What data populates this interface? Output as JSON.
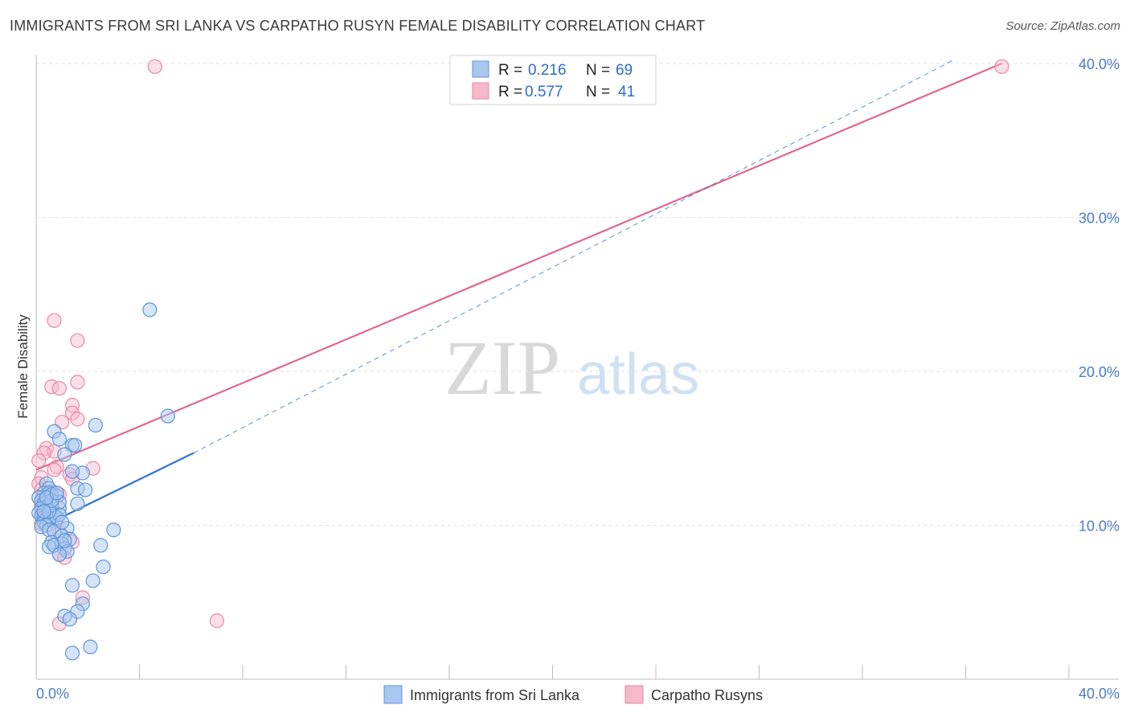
{
  "header": {
    "title": "IMMIGRANTS FROM SRI LANKA VS CARPATHO RUSYN FEMALE DISABILITY CORRELATION CHART",
    "source": "Source: ZipAtlas.com"
  },
  "watermark": {
    "zip": "ZIP",
    "atlas": "atlas"
  },
  "legend_box": {
    "rows": [
      {
        "r_label": "R =",
        "r_value": "0.216",
        "n_label": "N =",
        "n_value": "69"
      },
      {
        "r_label": "R =",
        "r_value": "0.577",
        "n_label": "N =",
        "n_value": "41"
      }
    ]
  },
  "colors": {
    "blue_fill": "#a9c8ef",
    "blue_stroke": "#5e95d8",
    "blue_line": "#2f74d0",
    "pink_fill": "#f6b8cb",
    "pink_stroke": "#e888a6",
    "pink_line": "#e0678f",
    "tick_text": "#4a7cc7",
    "grid": "#e2e2e2"
  },
  "chart_data": {
    "type": "scatter",
    "title": "IMMIGRANTS FROM SRI LANKA VS CARPATHO RUSYN FEMALE DISABILITY CORRELATION CHART",
    "xlabel": "",
    "ylabel": "Female Disability",
    "xlim": [
      0,
      40
    ],
    "ylim": [
      0,
      40
    ],
    "x_tick_labels": [
      "0.0%",
      "40.0%"
    ],
    "y_ticks": [
      10,
      20,
      30,
      40
    ],
    "y_tick_labels": [
      "10.0%",
      "20.0%",
      "30.0%",
      "40.0%"
    ],
    "legend": [
      "Immigrants from Sri Lanka",
      "Carpatho Rusyns"
    ],
    "series": [
      {
        "name": "Immigrants from Sri Lanka",
        "R": 0.216,
        "N": 69,
        "trend_solid": [
          [
            0.1,
            9.8
          ],
          [
            6.1,
            14.7
          ]
        ],
        "trend_dashed": [
          [
            6.1,
            14.7
          ],
          [
            35.5,
            40.2
          ]
        ],
        "points": [
          [
            4.4,
            24.0
          ],
          [
            5.1,
            17.1
          ],
          [
            2.3,
            16.5
          ],
          [
            0.7,
            16.1
          ],
          [
            1.4,
            15.2
          ],
          [
            1.5,
            15.2
          ],
          [
            0.9,
            15.6
          ],
          [
            1.1,
            14.6
          ],
          [
            1.8,
            13.4
          ],
          [
            1.4,
            13.5
          ],
          [
            0.4,
            12.7
          ],
          [
            0.5,
            12.4
          ],
          [
            1.6,
            12.4
          ],
          [
            1.9,
            12.3
          ],
          [
            0.3,
            12.1
          ],
          [
            0.5,
            12.1
          ],
          [
            0.6,
            12.0
          ],
          [
            0.8,
            11.9
          ],
          [
            0.1,
            11.8
          ],
          [
            0.2,
            11.6
          ],
          [
            0.3,
            11.4
          ],
          [
            0.4,
            11.2
          ],
          [
            0.2,
            11.1
          ],
          [
            0.6,
            11.0
          ],
          [
            0.9,
            11.1
          ],
          [
            0.1,
            10.8
          ],
          [
            0.2,
            10.6
          ],
          [
            0.3,
            10.5
          ],
          [
            0.4,
            10.4
          ],
          [
            0.5,
            10.3
          ],
          [
            0.7,
            10.6
          ],
          [
            0.8,
            10.5
          ],
          [
            0.3,
            10.2
          ],
          [
            0.4,
            10.0
          ],
          [
            1.6,
            11.4
          ],
          [
            0.9,
            10.7
          ],
          [
            0.2,
            9.9
          ],
          [
            0.5,
            9.7
          ],
          [
            3.0,
            9.7
          ],
          [
            0.7,
            9.6
          ],
          [
            1.2,
            9.8
          ],
          [
            1.0,
            9.3
          ],
          [
            1.3,
            9.1
          ],
          [
            0.6,
            8.9
          ],
          [
            1.0,
            8.8
          ],
          [
            0.5,
            8.6
          ],
          [
            0.7,
            8.7
          ],
          [
            1.1,
            8.5
          ],
          [
            1.2,
            8.3
          ],
          [
            0.9,
            8.1
          ],
          [
            2.5,
            8.7
          ],
          [
            2.6,
            7.3
          ],
          [
            2.2,
            6.4
          ],
          [
            1.4,
            6.1
          ],
          [
            1.8,
            4.9
          ],
          [
            1.6,
            4.4
          ],
          [
            1.1,
            4.1
          ],
          [
            1.3,
            3.9
          ],
          [
            2.1,
            2.1
          ],
          [
            1.4,
            1.7
          ],
          [
            0.6,
            11.3
          ],
          [
            0.9,
            11.5
          ],
          [
            0.5,
            10.9
          ],
          [
            0.6,
            11.6
          ],
          [
            0.4,
            11.8
          ],
          [
            0.8,
            12.1
          ],
          [
            0.3,
            10.9
          ],
          [
            1.0,
            10.2
          ],
          [
            1.1,
            9.0
          ]
        ]
      },
      {
        "name": "Carpatho Rusyns",
        "R": 0.577,
        "N": 41,
        "trend_solid": [
          [
            0.0,
            13.6
          ],
          [
            37.4,
            40.0
          ]
        ],
        "points": [
          [
            4.6,
            39.8
          ],
          [
            37.4,
            39.8
          ],
          [
            0.7,
            23.3
          ],
          [
            1.6,
            22.0
          ],
          [
            1.6,
            19.3
          ],
          [
            0.6,
            19.0
          ],
          [
            0.9,
            18.9
          ],
          [
            1.4,
            17.8
          ],
          [
            1.4,
            17.3
          ],
          [
            1.6,
            16.9
          ],
          [
            1.0,
            16.7
          ],
          [
            0.4,
            15.0
          ],
          [
            0.7,
            14.8
          ],
          [
            0.3,
            14.7
          ],
          [
            0.1,
            14.2
          ],
          [
            2.2,
            13.7
          ],
          [
            0.8,
            13.8
          ],
          [
            0.7,
            13.6
          ],
          [
            1.3,
            13.3
          ],
          [
            0.2,
            13.1
          ],
          [
            0.1,
            12.7
          ],
          [
            0.2,
            12.3
          ],
          [
            0.6,
            12.2
          ],
          [
            0.9,
            12.0
          ],
          [
            0.3,
            11.8
          ],
          [
            0.5,
            11.5
          ],
          [
            0.2,
            11.3
          ],
          [
            0.4,
            11.2
          ],
          [
            0.6,
            11.0
          ],
          [
            0.3,
            10.8
          ],
          [
            0.5,
            10.6
          ],
          [
            0.8,
            10.4
          ],
          [
            0.2,
            10.1
          ],
          [
            0.9,
            9.5
          ],
          [
            1.4,
            8.9
          ],
          [
            0.9,
            8.1
          ],
          [
            1.1,
            7.9
          ],
          [
            1.8,
            5.3
          ],
          [
            0.9,
            3.6
          ],
          [
            7.0,
            3.8
          ],
          [
            1.4,
            13.0
          ]
        ]
      }
    ]
  }
}
